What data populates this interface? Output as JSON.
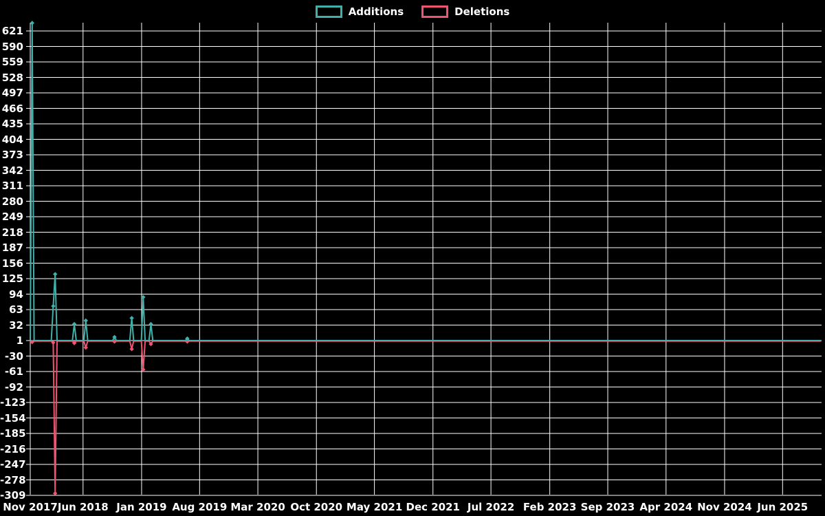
{
  "legend": {
    "additions_label": "Additions",
    "deletions_label": "Deletions"
  },
  "colors": {
    "background": "#000000",
    "grid": "#ffffff",
    "text": "#ffffff",
    "additions": "#3fb1aa",
    "deletions": "#ef5470"
  },
  "chart_data": {
    "type": "line",
    "title": "",
    "legend_position": "top-center",
    "grid": true,
    "x_axis": {
      "start_date": "2017-11-20",
      "end_date": "2025-10-20",
      "tick_labels": [
        "Nov 2017",
        "Jun 2018",
        "Jan 2019",
        "Aug 2019",
        "Mar 2020",
        "Oct 2020",
        "May 2021",
        "Dec 2021",
        "Jul 2022",
        "Feb 2023",
        "Sep 2023",
        "Apr 2024",
        "Nov 2024",
        "Jun 2025"
      ]
    },
    "y_axis": {
      "ticks": [
        621,
        590,
        559,
        528,
        497,
        466,
        435,
        404,
        373,
        342,
        311,
        280,
        249,
        218,
        187,
        156,
        125,
        94,
        63,
        32,
        1,
        -30,
        -61,
        -92,
        -123,
        -154,
        -185,
        -216,
        -247,
        -278,
        -309
      ],
      "min": -309,
      "max": 637
    },
    "series": [
      {
        "name": "Additions",
        "color": "#3fb1aa",
        "baseline": 1,
        "resolution": "weekly",
        "spikes": [
          {
            "date": "2017-11-26",
            "value": 637
          },
          {
            "date": "2018-02-12",
            "value": 70
          },
          {
            "date": "2018-02-19",
            "value": 134
          },
          {
            "date": "2018-04-30",
            "value": 34
          },
          {
            "date": "2018-06-11",
            "value": 41
          },
          {
            "date": "2018-09-24",
            "value": 8
          },
          {
            "date": "2018-11-26",
            "value": 46
          },
          {
            "date": "2019-01-07",
            "value": 88
          },
          {
            "date": "2019-02-04",
            "value": 34
          },
          {
            "date": "2019-06-17",
            "value": 5
          }
        ]
      },
      {
        "name": "Deletions",
        "color": "#ef5470",
        "baseline": 0,
        "resolution": "weekly",
        "spikes": [
          {
            "date": "2017-11-26",
            "value": -2
          },
          {
            "date": "2018-02-12",
            "value": -3
          },
          {
            "date": "2018-02-19",
            "value": -305
          },
          {
            "date": "2018-04-30",
            "value": -4
          },
          {
            "date": "2018-06-11",
            "value": -13
          },
          {
            "date": "2018-09-24",
            "value": -1
          },
          {
            "date": "2018-11-26",
            "value": -16
          },
          {
            "date": "2019-01-07",
            "value": -57
          },
          {
            "date": "2019-02-04",
            "value": -6
          },
          {
            "date": "2019-06-17",
            "value": -1
          }
        ]
      }
    ]
  }
}
